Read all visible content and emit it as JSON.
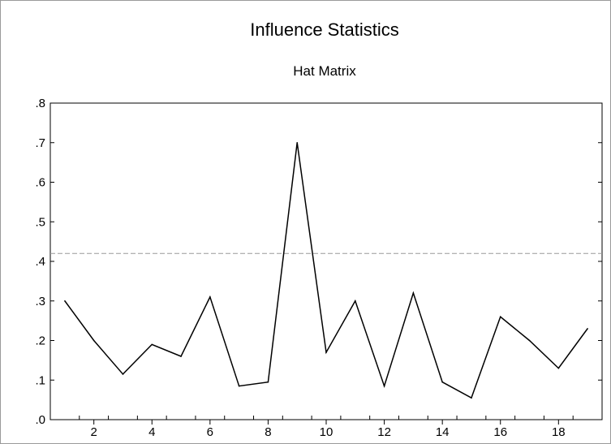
{
  "chart_data": {
    "type": "line",
    "title": "Influence Statistics",
    "subtitle": "Hat Matrix",
    "xlabel": "",
    "ylabel": "",
    "x": [
      1,
      2,
      3,
      4,
      5,
      6,
      7,
      8,
      9,
      10,
      11,
      12,
      13,
      14,
      15,
      16,
      17,
      18,
      19
    ],
    "series": [
      {
        "values": [
          0.3,
          0.2,
          0.115,
          0.19,
          0.16,
          0.31,
          0.085,
          0.095,
          0.7,
          0.17,
          0.3,
          0.085,
          0.32,
          0.095,
          0.055,
          0.26,
          0.2,
          0.13,
          0.23
        ],
        "color": "#000000"
      }
    ],
    "reference_line": {
      "y": 0.42,
      "style": "dashed",
      "color": "#9a9a9a"
    },
    "xlim": [
      0.5,
      19.5
    ],
    "ylim": [
      0,
      0.8
    ],
    "y_ticks": [
      0.0,
      0.1,
      0.2,
      0.3,
      0.4,
      0.5,
      0.6,
      0.7,
      0.8
    ],
    "y_tick_labels": [
      ".0",
      ".1",
      ".2",
      ".3",
      ".4",
      ".5",
      ".6",
      ".7",
      ".8"
    ],
    "x_ticks": [
      2,
      4,
      6,
      8,
      10,
      12,
      14,
      16,
      18
    ],
    "x_tick_labels": [
      "2",
      "4",
      "6",
      "8",
      "10",
      "12",
      "14",
      "16",
      "18"
    ],
    "grid": false,
    "legend": "none"
  }
}
